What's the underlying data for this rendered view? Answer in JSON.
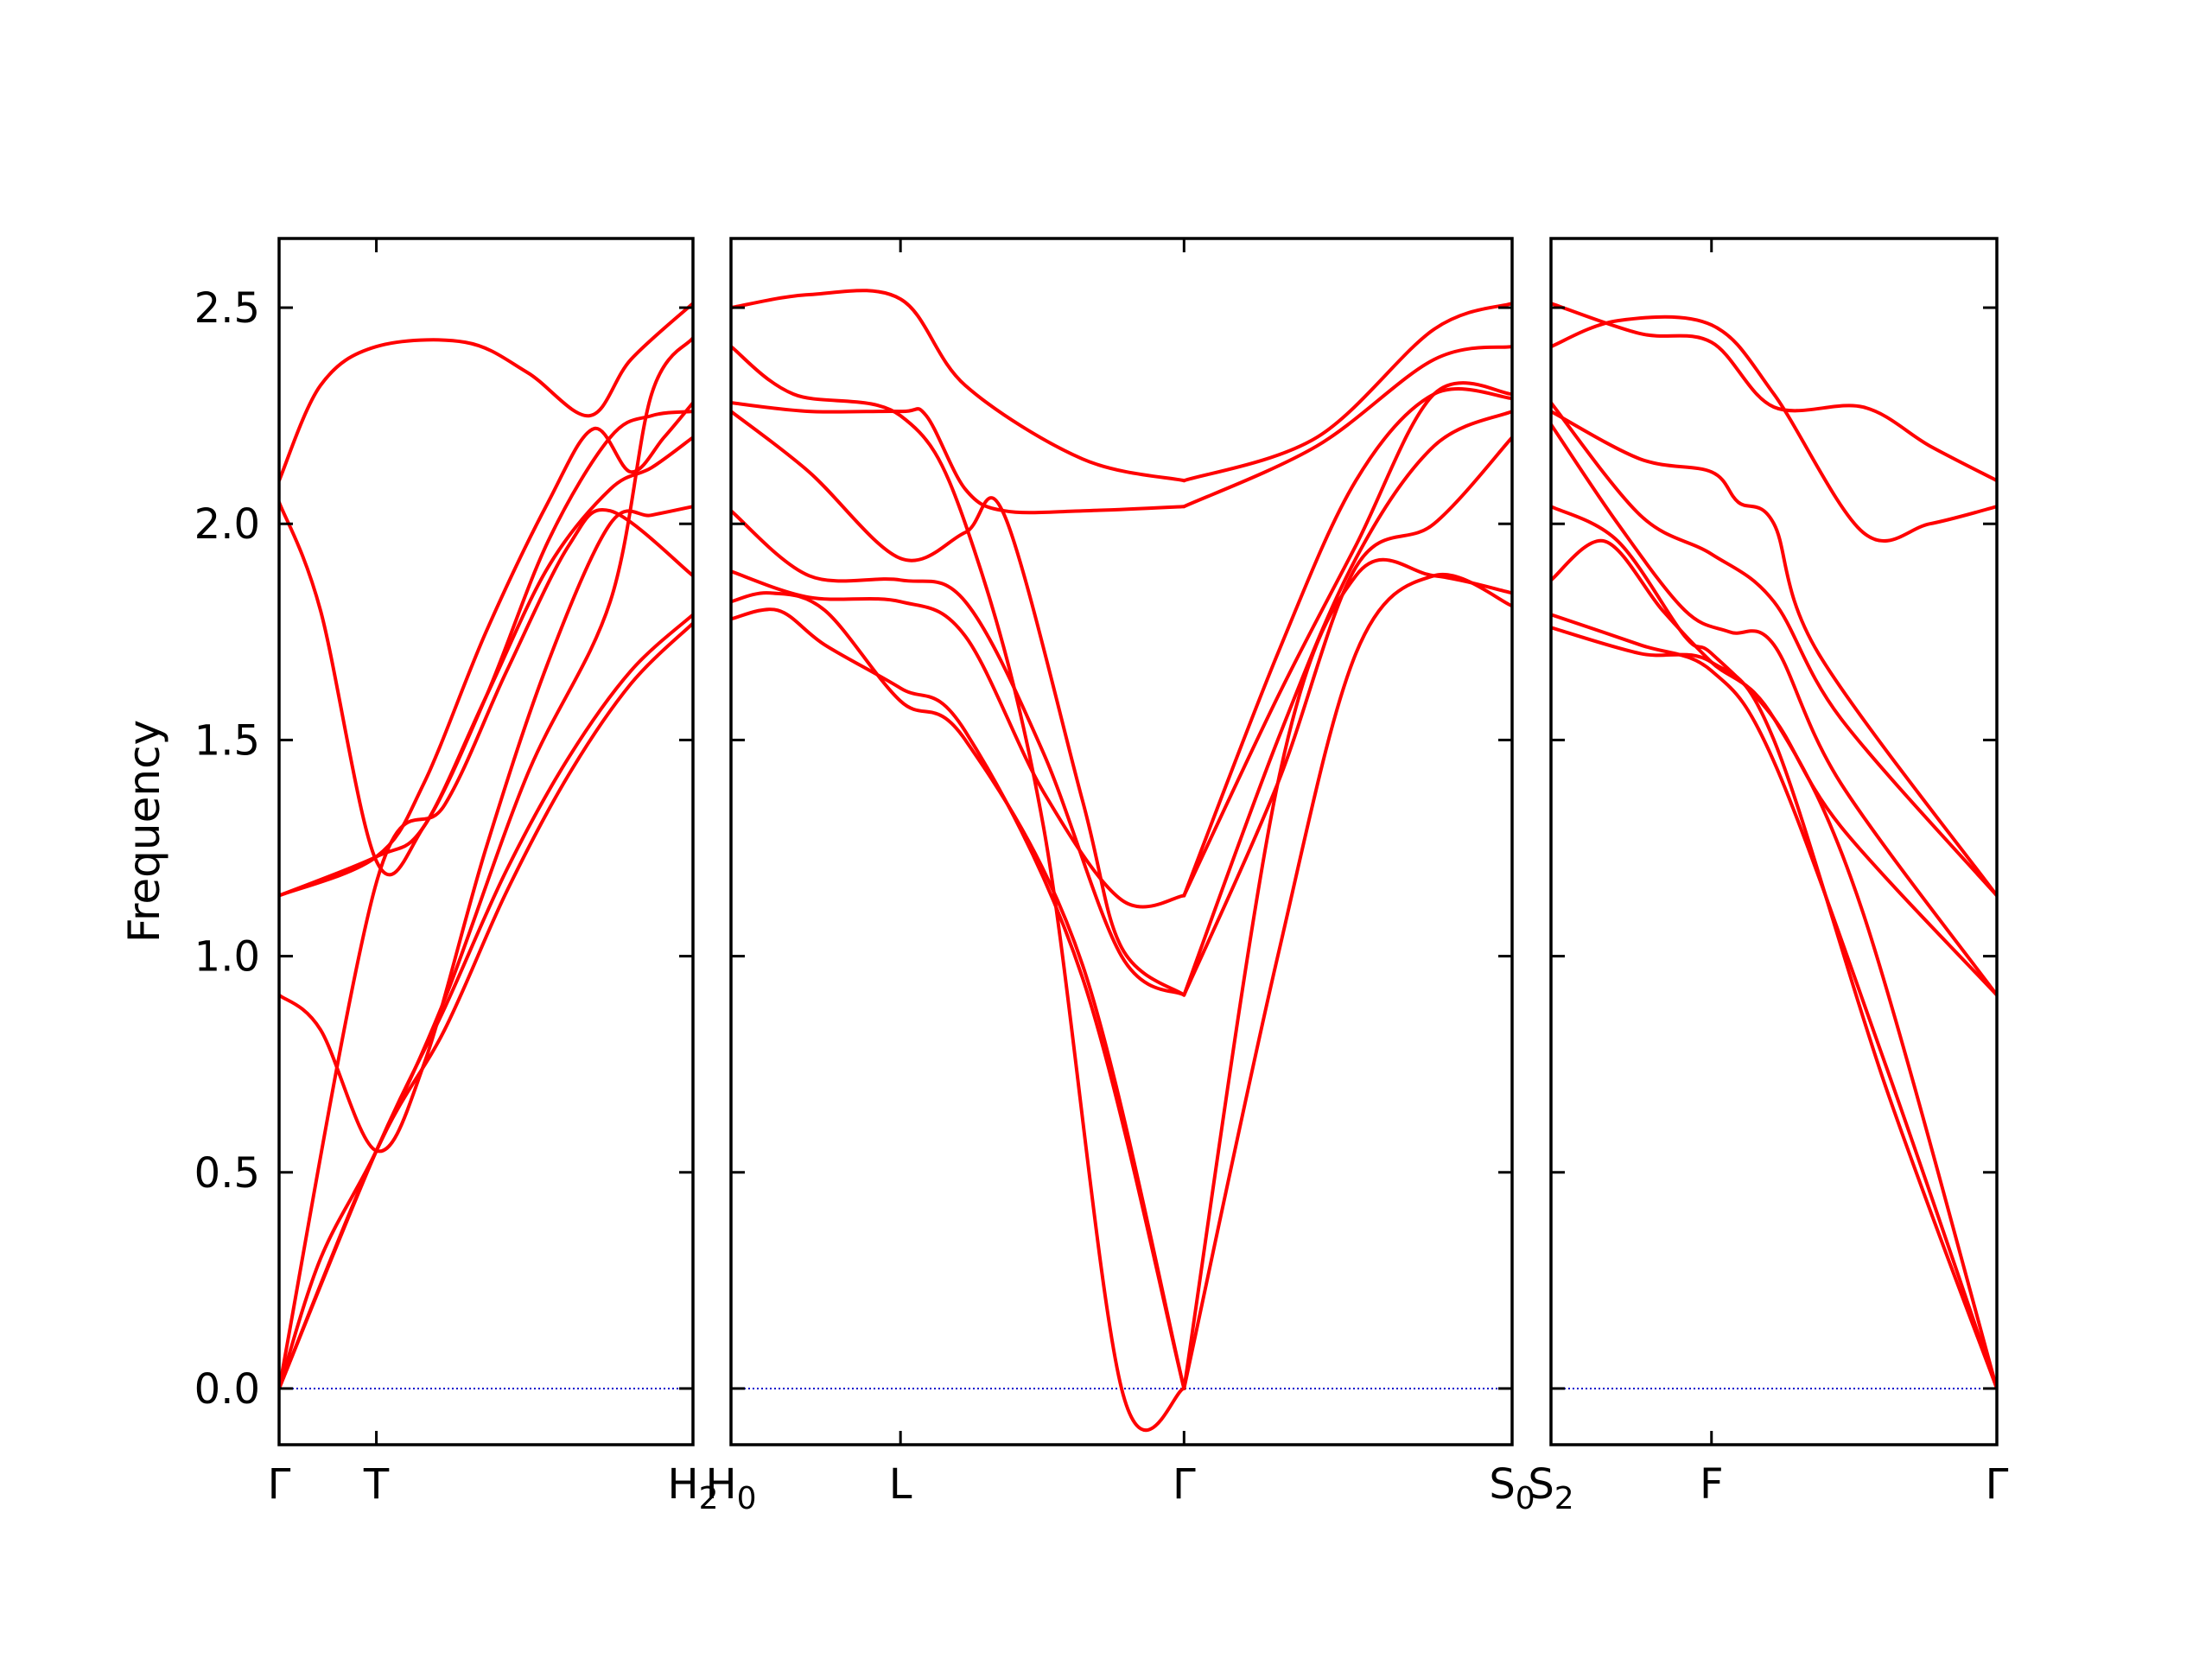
{
  "chart_data": {
    "type": "line",
    "title": "",
    "xlabel": "",
    "ylabel": "Frequency",
    "ylim": [
      -0.13,
      2.66
    ],
    "yticks": [
      "0.0",
      "0.5",
      "1.0",
      "1.5",
      "2.0",
      "2.5"
    ],
    "grid": false,
    "legend": "none",
    "line_color": "#ff0000",
    "zero_line_color": "#0000cc",
    "panels": [
      {
        "id": "panel1",
        "xlim": [
          0,
          1
        ],
        "ticks": [
          {
            "x": 0,
            "label": "Γ",
            "sub": ""
          },
          {
            "x": 0.235,
            "label": "T",
            "sub": ""
          },
          {
            "x": 1,
            "label": "H",
            "sub": "2"
          }
        ],
        "branches": [
          [
            [
              0,
              0
            ],
            [
              0.235,
              0.55
            ],
            [
              0.4,
              0.83
            ],
            [
              0.55,
              1.15
            ],
            [
              0.7,
              1.42
            ],
            [
              0.85,
              1.63
            ],
            [
              1,
              1.77
            ]
          ],
          [
            [
              0,
              0
            ],
            [
              0.235,
              0.55
            ],
            [
              0.4,
              0.88
            ],
            [
              0.55,
              1.2
            ],
            [
              0.7,
              1.46
            ],
            [
              0.85,
              1.66
            ],
            [
              1,
              1.79
            ]
          ],
          [
            [
              0,
              0
            ],
            [
              0.235,
              1.17
            ],
            [
              0.4,
              1.35
            ],
            [
              0.55,
              1.66
            ],
            [
              0.7,
              1.95
            ],
            [
              0.8,
              2.03
            ],
            [
              1,
              1.88
            ]
          ],
          [
            [
              0,
              0.91
            ],
            [
              0.1,
              0.83
            ],
            [
              0.235,
              0.55
            ],
            [
              0.35,
              0.75
            ],
            [
              0.5,
              1.25
            ],
            [
              0.65,
              1.68
            ],
            [
              0.8,
              2.0
            ],
            [
              0.9,
              2.02
            ],
            [
              1,
              2.04
            ]
          ],
          [
            [
              0,
              2.05
            ],
            [
              0.1,
              1.8
            ],
            [
              0.235,
              1.22
            ],
            [
              0.35,
              1.3
            ],
            [
              0.5,
              1.6
            ],
            [
              0.65,
              1.9
            ],
            [
              0.8,
              2.08
            ],
            [
              0.9,
              2.13
            ],
            [
              1,
              2.2
            ]
          ],
          [
            [
              0,
              1.14
            ],
            [
              0.235,
              1.23
            ],
            [
              0.35,
              1.3
            ],
            [
              0.5,
              1.6
            ],
            [
              0.65,
              1.96
            ],
            [
              0.8,
              2.2
            ],
            [
              0.9,
              2.25
            ],
            [
              1,
              2.26
            ]
          ],
          [
            [
              0,
              1.14
            ],
            [
              0.235,
              1.23
            ],
            [
              0.35,
              1.4
            ],
            [
              0.5,
              1.75
            ],
            [
              0.65,
              2.05
            ],
            [
              0.76,
              2.22
            ],
            [
              0.85,
              2.12
            ],
            [
              0.93,
              2.2
            ],
            [
              1,
              2.28
            ]
          ],
          [
            [
              0,
              2.1
            ],
            [
              0.1,
              2.32
            ],
            [
              0.235,
              2.41
            ],
            [
              0.45,
              2.42
            ],
            [
              0.6,
              2.35
            ],
            [
              0.75,
              2.25
            ],
            [
              0.85,
              2.38
            ],
            [
              1,
              2.51
            ]
          ],
          [
            [
              0,
              0
            ],
            [
              0.1,
              0.3
            ],
            [
              0.235,
              0.55
            ],
            [
              0.4,
              0.9
            ],
            [
              0.6,
              1.42
            ],
            [
              0.8,
              1.82
            ],
            [
              0.9,
              2.3
            ],
            [
              1,
              2.43
            ]
          ]
        ]
      },
      {
        "id": "panel2",
        "xlim": [
          0,
          1
        ],
        "ticks": [
          {
            "x": 0,
            "label": "H",
            "sub": "0"
          },
          {
            "x": 0.217,
            "label": "L",
            "sub": ""
          },
          {
            "x": 0.58,
            "label": "Γ",
            "sub": ""
          },
          {
            "x": 1,
            "label": "S",
            "sub": "0"
          }
        ],
        "branches": [
          [
            [
              0,
              1.78
            ],
            [
              0.06,
              1.8
            ],
            [
              0.12,
              1.72
            ],
            [
              0.217,
              1.62
            ],
            [
              0.3,
              1.52
            ],
            [
              0.45,
              0.95
            ],
            [
              0.58,
              0
            ]
          ],
          [
            [
              0,
              1.82
            ],
            [
              0.05,
              1.84
            ],
            [
              0.12,
              1.8
            ],
            [
              0.217,
              1.59
            ],
            [
              0.3,
              1.5
            ],
            [
              0.45,
              0.98
            ],
            [
              0.58,
              0
            ]
          ],
          [
            [
              0,
              1.89
            ],
            [
              0.1,
              1.83
            ],
            [
              0.217,
              1.82
            ],
            [
              0.3,
              1.74
            ],
            [
              0.4,
              1.38
            ],
            [
              0.5,
              1.13
            ],
            [
              0.58,
              1.14
            ]
          ],
          [
            [
              0,
              2.03
            ],
            [
              0.1,
              1.88
            ],
            [
              0.217,
              1.87
            ],
            [
              0.3,
              1.82
            ],
            [
              0.4,
              1.47
            ],
            [
              0.5,
              1.0
            ],
            [
              0.58,
              0.91
            ]
          ],
          [
            [
              0,
              2.26
            ],
            [
              0.1,
              2.12
            ],
            [
              0.217,
              1.92
            ],
            [
              0.3,
              1.98
            ],
            [
              0.35,
              2.02
            ],
            [
              0.45,
              1.36
            ],
            [
              0.5,
              1.02
            ],
            [
              0.58,
              0.91
            ]
          ],
          [
            [
              0,
              2.28
            ],
            [
              0.1,
              2.26
            ],
            [
              0.217,
              2.26
            ],
            [
              0.25,
              2.25
            ],
            [
              0.3,
              2.08
            ],
            [
              0.35,
              2.03
            ],
            [
              0.45,
              2.03
            ],
            [
              0.58,
              2.04
            ]
          ],
          [
            [
              0,
              2.41
            ],
            [
              0.08,
              2.3
            ],
            [
              0.217,
              2.25
            ],
            [
              0.3,
              2.0
            ],
            [
              0.4,
              1.3
            ],
            [
              0.5,
              0.0
            ],
            [
              0.58,
              0
            ]
          ],
          [
            [
              0,
              2.5
            ],
            [
              0.1,
              2.53
            ],
            [
              0.217,
              2.52
            ],
            [
              0.3,
              2.32
            ],
            [
              0.45,
              2.15
            ],
            [
              0.58,
              2.1
            ]
          ],
          [
            [
              0.58,
              0
            ],
            [
              0.7,
              1.4
            ],
            [
              0.8,
              1.88
            ],
            [
              0.9,
              1.88
            ],
            [
              1,
              1.84
            ]
          ],
          [
            [
              0.58,
              0
            ],
            [
              0.7,
              1.0
            ],
            [
              0.8,
              1.7
            ],
            [
              0.9,
              1.88
            ],
            [
              1,
              1.81
            ]
          ],
          [
            [
              0.58,
              0.91
            ],
            [
              0.7,
              1.4
            ],
            [
              0.8,
              1.9
            ],
            [
              0.9,
              2.0
            ],
            [
              1,
              2.2
            ]
          ],
          [
            [
              0.58,
              0.91
            ],
            [
              0.7,
              1.5
            ],
            [
              0.8,
              1.92
            ],
            [
              0.9,
              2.18
            ],
            [
              1,
              2.26
            ]
          ],
          [
            [
              0.58,
              1.14
            ],
            [
              0.7,
              1.6
            ],
            [
              0.8,
              1.95
            ],
            [
              0.9,
              2.3
            ],
            [
              1,
              2.3
            ]
          ],
          [
            [
              0.58,
              1.14
            ],
            [
              0.7,
              1.7
            ],
            [
              0.8,
              2.1
            ],
            [
              0.9,
              2.3
            ],
            [
              1,
              2.29
            ]
          ],
          [
            [
              0.58,
              2.04
            ],
            [
              0.75,
              2.18
            ],
            [
              0.9,
              2.38
            ],
            [
              1,
              2.41
            ]
          ],
          [
            [
              0.58,
              2.1
            ],
            [
              0.75,
              2.2
            ],
            [
              0.9,
              2.45
            ],
            [
              1,
              2.51
            ]
          ]
        ]
      },
      {
        "id": "panel3",
        "xlim": [
          0,
          1
        ],
        "ticks": [
          {
            "x": 0,
            "label": "S",
            "sub": "2"
          },
          {
            "x": 0.36,
            "label": "F",
            "sub": ""
          },
          {
            "x": 1,
            "label": "Γ",
            "sub": ""
          }
        ],
        "branches": [
          [
            [
              0,
              1.76
            ],
            [
              0.2,
              1.7
            ],
            [
              0.36,
              1.68
            ],
            [
              0.5,
              1.5
            ],
            [
              0.75,
              0.7
            ],
            [
              1,
              0
            ]
          ],
          [
            [
              0,
              1.79
            ],
            [
              0.2,
              1.72
            ],
            [
              0.36,
              1.66
            ],
            [
              0.5,
              1.45
            ],
            [
              0.75,
              0.75
            ],
            [
              1,
              0
            ]
          ],
          [
            [
              0,
              1.87
            ],
            [
              0.12,
              1.96
            ],
            [
              0.25,
              1.8
            ],
            [
              0.36,
              1.68
            ],
            [
              0.5,
              1.55
            ],
            [
              0.7,
              1.1
            ],
            [
              1,
              0
            ]
          ],
          [
            [
              0,
              2.04
            ],
            [
              0.15,
              1.96
            ],
            [
              0.3,
              1.74
            ],
            [
              0.36,
              1.7
            ],
            [
              0.5,
              1.55
            ],
            [
              0.65,
              1.3
            ],
            [
              1,
              0.91
            ]
          ],
          [
            [
              0,
              2.23
            ],
            [
              0.15,
              2.0
            ],
            [
              0.3,
              1.8
            ],
            [
              0.4,
              1.75
            ],
            [
              0.5,
              1.72
            ],
            [
              0.65,
              1.4
            ],
            [
              1,
              0.91
            ]
          ],
          [
            [
              0,
              2.28
            ],
            [
              0.2,
              2.02
            ],
            [
              0.36,
              1.93
            ],
            [
              0.5,
              1.82
            ],
            [
              0.65,
              1.55
            ],
            [
              1,
              1.14
            ]
          ],
          [
            [
              0,
              2.26
            ],
            [
              0.2,
              2.15
            ],
            [
              0.36,
              2.12
            ],
            [
              0.42,
              2.05
            ],
            [
              0.5,
              2.0
            ],
            [
              0.6,
              1.7
            ],
            [
              1,
              1.14
            ]
          ],
          [
            [
              0,
              2.41
            ],
            [
              0.15,
              2.47
            ],
            [
              0.36,
              2.46
            ],
            [
              0.5,
              2.3
            ],
            [
              0.7,
              1.98
            ],
            [
              0.85,
              2.0
            ],
            [
              1,
              2.04
            ]
          ],
          [
            [
              0,
              2.51
            ],
            [
              0.2,
              2.44
            ],
            [
              0.36,
              2.42
            ],
            [
              0.5,
              2.27
            ],
            [
              0.7,
              2.27
            ],
            [
              0.85,
              2.18
            ],
            [
              1,
              2.1
            ]
          ]
        ]
      }
    ]
  }
}
